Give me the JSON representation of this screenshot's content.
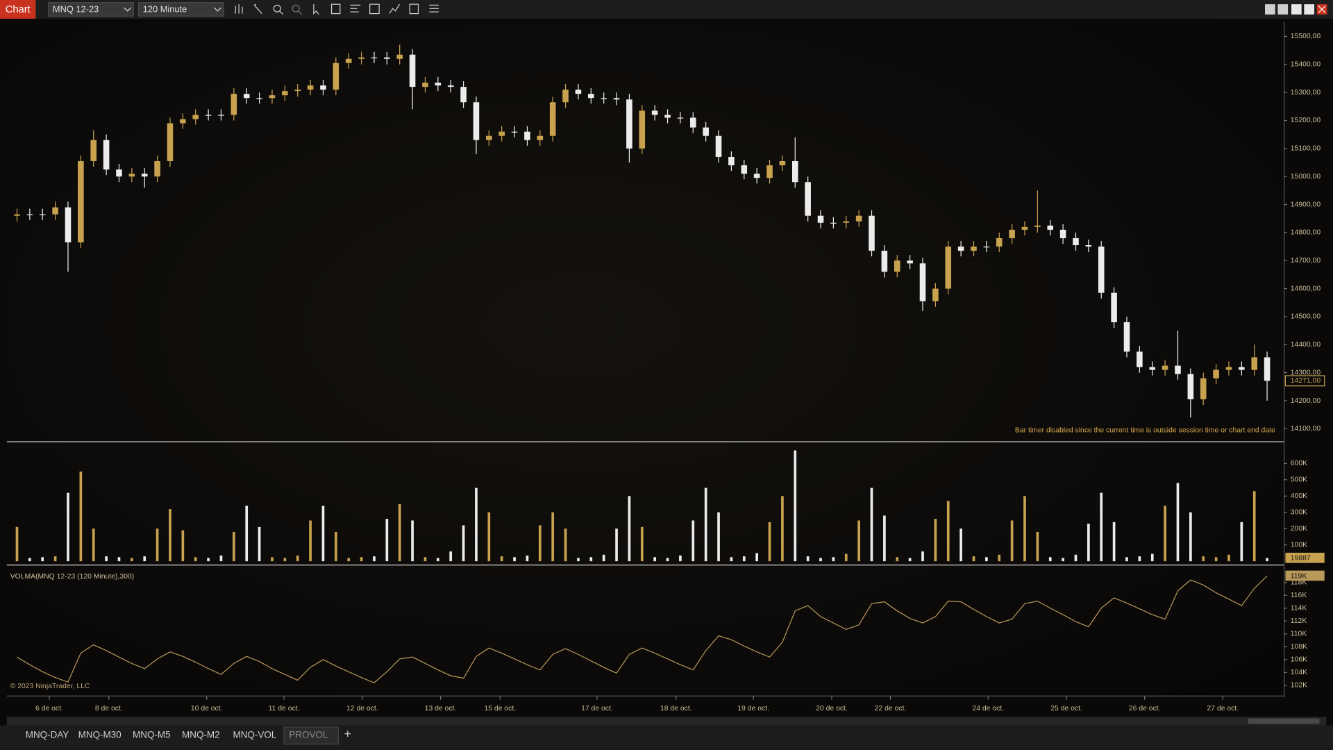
{
  "app": {
    "toolbar": {
      "title": "Chart",
      "instrument": "MNQ 12-23",
      "interval": "120 Minute"
    },
    "tabs": [
      "MNQ-DAY",
      "MNQ-M30",
      "MNQ-M5",
      "MNQ-M2",
      "MNQ-VOL",
      "PROVOL"
    ],
    "add_tab": "+",
    "copyright": "© 2023 NinjaTrader, LLC"
  },
  "chart_data": [
    {
      "type": "candlestick",
      "up_color": "#c9a24f",
      "down_color": "#ececec",
      "annotation": "Bar timer disabled since the current time is outside session time or chart end date",
      "open": [
        14860,
        14865,
        14865,
        14865,
        14890,
        14765,
        15055,
        15130,
        15025,
        15000,
        15010,
        15000,
        15055,
        15190,
        15205,
        15220,
        15220,
        15220,
        15295,
        15280,
        15280,
        15290,
        15305,
        15310,
        15325,
        15310,
        15405,
        15420,
        15425,
        15425,
        15420,
        15435,
        15320,
        15335,
        15325,
        15320,
        15265,
        15130,
        15145,
        15160,
        15160,
        15130,
        15145,
        15265,
        15310,
        15295,
        15280,
        15280,
        15275,
        15100,
        15235,
        15220,
        15210,
        15210,
        15175,
        15145,
        15070,
        15040,
        15010,
        14995,
        15040,
        15055,
        14980,
        14860,
        14835,
        14835,
        14840,
        14860,
        14735,
        14660,
        14700,
        14690,
        14555,
        14600,
        14750,
        14735,
        14750,
        14750,
        14780,
        14810,
        14820,
        14825,
        14810,
        14780,
        14755,
        14750,
        14585,
        14480,
        14375,
        14320,
        14310,
        14325,
        14295,
        14205,
        14280,
        14310,
        14320,
        14310,
        14355
      ],
      "high": [
        14885,
        14885,
        14885,
        14910,
        14910,
        15075,
        15165,
        15150,
        15045,
        15030,
        15030,
        15075,
        15210,
        15225,
        15240,
        15240,
        15240,
        15315,
        15315,
        15300,
        15310,
        15325,
        15330,
        15345,
        15345,
        15425,
        15440,
        15445,
        15445,
        15445,
        15470,
        15455,
        15355,
        15355,
        15345,
        15340,
        15285,
        15165,
        15180,
        15180,
        15180,
        15165,
        15285,
        15330,
        15330,
        15315,
        15300,
        15300,
        15295,
        15255,
        15255,
        15240,
        15230,
        15230,
        15195,
        15165,
        15090,
        15060,
        15030,
        15060,
        15075,
        15140,
        15000,
        14880,
        14855,
        14860,
        14880,
        14880,
        14755,
        14720,
        14720,
        14710,
        14620,
        14770,
        14770,
        14770,
        14770,
        14800,
        14830,
        14840,
        14950,
        14845,
        14830,
        14800,
        14775,
        14770,
        14605,
        14500,
        14395,
        14340,
        14345,
        14450,
        14315,
        14300,
        14330,
        14340,
        14340,
        14400,
        14375
      ],
      "low": [
        14840,
        14845,
        14845,
        14845,
        14660,
        14745,
        15035,
        15005,
        14980,
        14980,
        14960,
        14980,
        15035,
        15170,
        15185,
        15200,
        15200,
        15200,
        15260,
        15260,
        15260,
        15270,
        15285,
        15290,
        15290,
        15290,
        15385,
        15400,
        15405,
        15400,
        15400,
        15240,
        15300,
        15305,
        15300,
        15245,
        15080,
        15110,
        15125,
        15140,
        15110,
        15110,
        15125,
        15245,
        15275,
        15260,
        15260,
        15255,
        15050,
        15080,
        15200,
        15190,
        15190,
        15155,
        15125,
        15050,
        15020,
        14990,
        14975,
        14975,
        15020,
        14960,
        14840,
        14815,
        14815,
        14815,
        14820,
        14715,
        14640,
        14640,
        14670,
        14520,
        14535,
        14580,
        14715,
        14715,
        14730,
        14730,
        14760,
        14790,
        14800,
        14790,
        14760,
        14735,
        14730,
        14565,
        14460,
        14355,
        14300,
        14290,
        14290,
        14275,
        14140,
        14185,
        14260,
        14290,
        14290,
        14290,
        14200
      ],
      "close": [
        14865,
        14865,
        14865,
        14890,
        14765,
        15055,
        15130,
        15025,
        15000,
        15010,
        15000,
        15055,
        15190,
        15205,
        15220,
        15220,
        15220,
        15295,
        15280,
        15280,
        15290,
        15305,
        15310,
        15325,
        15310,
        15405,
        15420,
        15425,
        15425,
        15420,
        15435,
        15320,
        15335,
        15325,
        15320,
        15265,
        15130,
        15145,
        15160,
        15160,
        15130,
        15145,
        15265,
        15310,
        15295,
        15280,
        15280,
        15275,
        15100,
        15235,
        15220,
        15210,
        15210,
        15175,
        15145,
        15070,
        15040,
        15010,
        14995,
        15040,
        15055,
        14980,
        14860,
        14835,
        14835,
        14840,
        14860,
        14735,
        14660,
        14700,
        14690,
        14555,
        14600,
        14750,
        14735,
        14750,
        14750,
        14780,
        14810,
        14820,
        14825,
        14810,
        14780,
        14755,
        14750,
        14585,
        14480,
        14375,
        14320,
        14310,
        14325,
        14295,
        14205,
        14280,
        14310,
        14320,
        14310,
        14355,
        14271
      ],
      "value_labels": [
        null,
        null,
        null,
        null,
        null,
        null,
        null,
        null,
        null,
        null,
        null,
        null,
        null,
        null,
        null,
        null,
        null,
        null,
        null,
        null,
        null,
        null,
        null,
        null,
        null,
        null,
        null,
        null,
        null,
        null,
        null,
        null,
        null,
        null,
        null,
        null,
        null,
        null,
        null,
        null,
        null,
        null,
        null,
        null,
        null,
        null,
        null,
        null,
        null,
        null,
        null,
        null,
        null,
        null,
        null,
        null,
        null,
        null,
        null,
        null,
        null,
        null,
        null,
        null,
        null,
        null,
        null,
        null,
        null,
        null,
        null,
        null,
        null,
        null,
        null,
        null,
        null,
        null,
        null,
        null,
        null,
        null,
        null,
        null,
        null,
        null,
        null,
        null,
        null,
        null,
        null,
        null,
        null,
        null,
        null,
        null,
        null,
        null,
        "14271,00"
      ],
      "xlim": [
        -0.8,
        99.3
      ],
      "xticks": [
        {
          "value": 2.53,
          "label": "6 de oct."
        },
        {
          "value": 7.2,
          "label": "8 de oct."
        },
        {
          "value": 14.87,
          "label": "10 de oct."
        },
        {
          "value": 20.93,
          "label": "11 de oct."
        },
        {
          "value": 27.07,
          "label": "12 de oct."
        },
        {
          "value": 33.2,
          "label": "13 de oct."
        },
        {
          "value": 37.87,
          "label": "15 de oct."
        },
        {
          "value": 45.47,
          "label": "17 de oct."
        },
        {
          "value": 51.67,
          "label": "18 de oct."
        },
        {
          "value": 57.73,
          "label": "19 de oct."
        },
        {
          "value": 63.87,
          "label": "20 de oct."
        },
        {
          "value": 68.47,
          "label": "22 de oct."
        },
        {
          "value": 76.13,
          "label": "24 de oct."
        },
        {
          "value": 82.27,
          "label": "25 de oct."
        },
        {
          "value": 88.4,
          "label": "26 de oct."
        },
        {
          "value": 94.53,
          "label": "27 de oct."
        }
      ],
      "ylim": [
        14055,
        15545
      ],
      "yticks": [
        {
          "value": 14100,
          "label": "14100,00"
        },
        {
          "value": 14200,
          "label": "14200,00"
        },
        {
          "value": 14300,
          "label": "14300,00"
        },
        {
          "value": 14400,
          "label": "14400,00"
        },
        {
          "value": 14500,
          "label": "14500,00"
        },
        {
          "value": 14600,
          "label": "14600,00"
        },
        {
          "value": 14700,
          "label": "14700,00"
        },
        {
          "value": 14800,
          "label": "14800,00"
        },
        {
          "value": 14900,
          "label": "14900,00"
        },
        {
          "value": 15000,
          "label": "15000,00"
        },
        {
          "value": 15100,
          "label": "15100,00"
        },
        {
          "value": 15200,
          "label": "15200,00"
        },
        {
          "value": 15300,
          "label": "15300,00"
        },
        {
          "value": 15400,
          "label": "15400,00"
        },
        {
          "value": 15500,
          "label": "15500,00"
        }
      ]
    },
    {
      "type": "bar",
      "values": [
        210000,
        20000,
        25000,
        30000,
        420000,
        550000,
        200000,
        30000,
        25000,
        20000,
        30000,
        200000,
        320000,
        190000,
        25000,
        20000,
        35000,
        180000,
        340000,
        210000,
        25000,
        20000,
        35000,
        250000,
        340000,
        180000,
        20000,
        25000,
        30000,
        260000,
        350000,
        250000,
        25000,
        20000,
        60000,
        220000,
        450000,
        300000,
        30000,
        25000,
        35000,
        220000,
        300000,
        200000,
        20000,
        25000,
        40000,
        200000,
        400000,
        210000,
        25000,
        20000,
        35000,
        250000,
        450000,
        300000,
        25000,
        30000,
        50000,
        240000,
        400000,
        680000,
        30000,
        20000,
        25000,
        45000,
        250000,
        450000,
        280000,
        25000,
        20000,
        60000,
        260000,
        370000,
        200000,
        30000,
        25000,
        40000,
        250000,
        400000,
        180000,
        25000,
        20000,
        40000,
        230000,
        420000,
        240000,
        25000,
        30000,
        45000,
        340000,
        480000,
        300000,
        30000,
        25000,
        40000,
        240000,
        430000,
        19887
      ],
      "ylim": [
        0,
        720000
      ],
      "yticks": [
        {
          "value": 100000,
          "label": "100K"
        },
        {
          "value": 200000,
          "label": "200K"
        },
        {
          "value": 300000,
          "label": "300K"
        },
        {
          "value": 400000,
          "label": "400K"
        },
        {
          "value": 500000,
          "label": "500K"
        },
        {
          "value": 600000,
          "label": "600K"
        }
      ]
    },
    {
      "type": "line",
      "title": "VOLMA(MNQ 12-23 (120 Minute),300)",
      "color": "#b8995a",
      "values": [
        106400,
        105200,
        104100,
        103200,
        102500,
        107000,
        108300,
        107400,
        106400,
        105400,
        104600,
        106100,
        107200,
        106500,
        105600,
        104600,
        103700,
        105400,
        106500,
        105700,
        104600,
        103700,
        102800,
        104800,
        106000,
        105000,
        104100,
        103200,
        102400,
        104100,
        106100,
        106400,
        105400,
        104400,
        103500,
        103100,
        106500,
        107800,
        107000,
        106100,
        105200,
        104400,
        106800,
        107700,
        106800,
        105800,
        104800,
        103900,
        106800,
        107800,
        107000,
        106100,
        105200,
        104400,
        107400,
        109700,
        109100,
        108100,
        107200,
        106400,
        108700,
        113600,
        114400,
        112700,
        111700,
        110700,
        111400,
        114700,
        115000,
        113600,
        112400,
        111700,
        112700,
        115100,
        115000,
        113800,
        112700,
        111700,
        112300,
        114700,
        115100,
        114000,
        113000,
        111900,
        111100,
        114000,
        115600,
        114800,
        113900,
        113000,
        112300,
        116700,
        118400,
        117600,
        116400,
        115400,
        114400,
        117100,
        119000
      ],
      "value_labels": [
        null,
        null,
        null,
        null,
        null,
        null,
        null,
        null,
        null,
        null,
        null,
        null,
        null,
        null,
        null,
        null,
        null,
        null,
        null,
        null,
        null,
        null,
        null,
        null,
        null,
        null,
        null,
        null,
        null,
        null,
        null,
        null,
        null,
        null,
        null,
        null,
        null,
        null,
        null,
        null,
        null,
        null,
        null,
        null,
        null,
        null,
        null,
        null,
        null,
        null,
        null,
        null,
        null,
        null,
        null,
        null,
        null,
        null,
        null,
        null,
        null,
        null,
        null,
        null,
        null,
        null,
        null,
        null,
        null,
        null,
        null,
        null,
        null,
        null,
        null,
        null,
        null,
        null,
        null,
        null,
        null,
        null,
        null,
        null,
        null,
        null,
        null,
        null,
        null,
        null,
        null,
        null,
        null,
        null,
        null,
        null,
        null,
        null,
        "119K"
      ],
      "ylim": [
        100400,
        120250
      ],
      "yticks": [
        {
          "value": 102000,
          "label": "102K"
        },
        {
          "value": 104000,
          "label": "104K"
        },
        {
          "value": 106000,
          "label": "106K"
        },
        {
          "value": 108000,
          "label": "108K"
        },
        {
          "value": 110000,
          "label": "110K"
        },
        {
          "value": 112000,
          "label": "112K"
        },
        {
          "value": 114000,
          "label": "114K"
        },
        {
          "value": 116000,
          "label": "116K"
        },
        {
          "value": 118000,
          "label": "118K"
        }
      ]
    }
  ]
}
